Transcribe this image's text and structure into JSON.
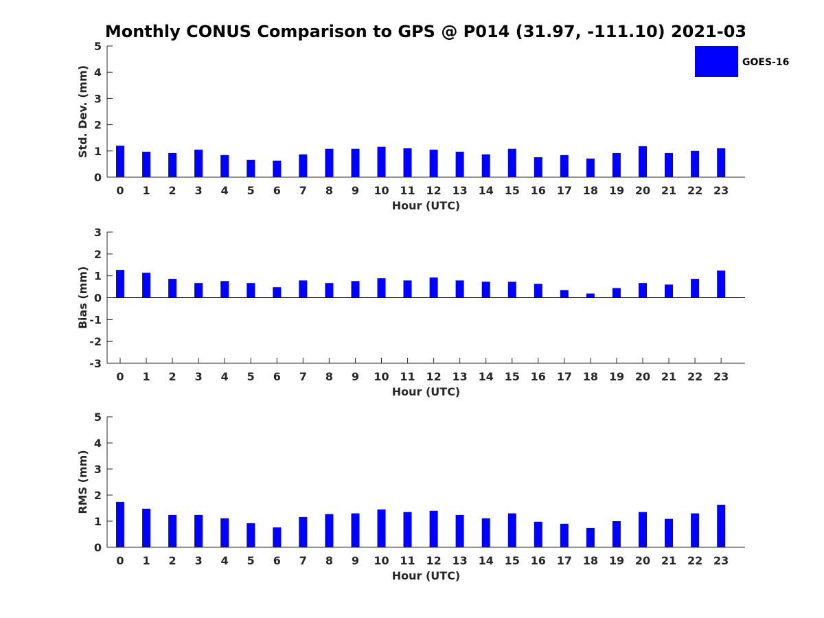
{
  "title": "Monthly CONUS Comparison to GPS @ P014 (31.97, -111.10) 2021-03",
  "legend": {
    "label": "GOES-16",
    "color": "#0000ff",
    "position": "top-right"
  },
  "chart_data": [
    {
      "type": "bar",
      "id": "std",
      "xlabel": "Hour (UTC)",
      "ylabel": "Std. Dev. (mm)",
      "ylim": [
        0,
        5
      ],
      "yticks": [
        0,
        1,
        2,
        3,
        4,
        5
      ],
      "categories": [
        "0",
        "1",
        "2",
        "3",
        "4",
        "5",
        "6",
        "7",
        "8",
        "9",
        "10",
        "11",
        "12",
        "13",
        "14",
        "15",
        "16",
        "17",
        "18",
        "19",
        "20",
        "21",
        "22",
        "23"
      ],
      "series": [
        {
          "name": "GOES-16",
          "values": [
            1.2,
            0.97,
            0.92,
            1.05,
            0.84,
            0.66,
            0.63,
            0.87,
            1.08,
            1.08,
            1.16,
            1.1,
            1.05,
            0.97,
            0.87,
            1.08,
            0.76,
            0.84,
            0.71,
            0.92,
            1.18,
            0.92,
            1.0,
            1.1
          ]
        }
      ]
    },
    {
      "type": "bar",
      "id": "bias",
      "xlabel": "Hour (UTC)",
      "ylabel": "Bias (mm)",
      "ylim": [
        -3,
        3
      ],
      "yticks": [
        -3,
        -2,
        -1,
        0,
        1,
        2,
        3
      ],
      "zero_line": true,
      "categories": [
        "0",
        "1",
        "2",
        "3",
        "4",
        "5",
        "6",
        "7",
        "8",
        "9",
        "10",
        "11",
        "12",
        "13",
        "14",
        "15",
        "16",
        "17",
        "18",
        "19",
        "20",
        "21",
        "22",
        "23"
      ],
      "series": [
        {
          "name": "GOES-16",
          "values": [
            1.27,
            1.14,
            0.86,
            0.67,
            0.76,
            0.67,
            0.48,
            0.79,
            0.67,
            0.76,
            0.89,
            0.79,
            0.92,
            0.79,
            0.73,
            0.73,
            0.63,
            0.35,
            0.19,
            0.44,
            0.67,
            0.6,
            0.86,
            1.24
          ]
        }
      ]
    },
    {
      "type": "bar",
      "id": "rms",
      "xlabel": "Hour (UTC)",
      "ylabel": "RMS (mm)",
      "ylim": [
        0,
        5
      ],
      "yticks": [
        0,
        1,
        2,
        3,
        4,
        5
      ],
      "categories": [
        "0",
        "1",
        "2",
        "3",
        "4",
        "5",
        "6",
        "7",
        "8",
        "9",
        "10",
        "11",
        "12",
        "13",
        "14",
        "15",
        "16",
        "17",
        "18",
        "19",
        "20",
        "21",
        "22",
        "23"
      ],
      "series": [
        {
          "name": "GOES-16",
          "values": [
            1.74,
            1.48,
            1.24,
            1.24,
            1.11,
            0.92,
            0.76,
            1.16,
            1.27,
            1.3,
            1.45,
            1.35,
            1.4,
            1.24,
            1.11,
            1.3,
            0.98,
            0.9,
            0.74,
            1.0,
            1.35,
            1.09,
            1.3,
            1.63
          ]
        }
      ]
    }
  ]
}
